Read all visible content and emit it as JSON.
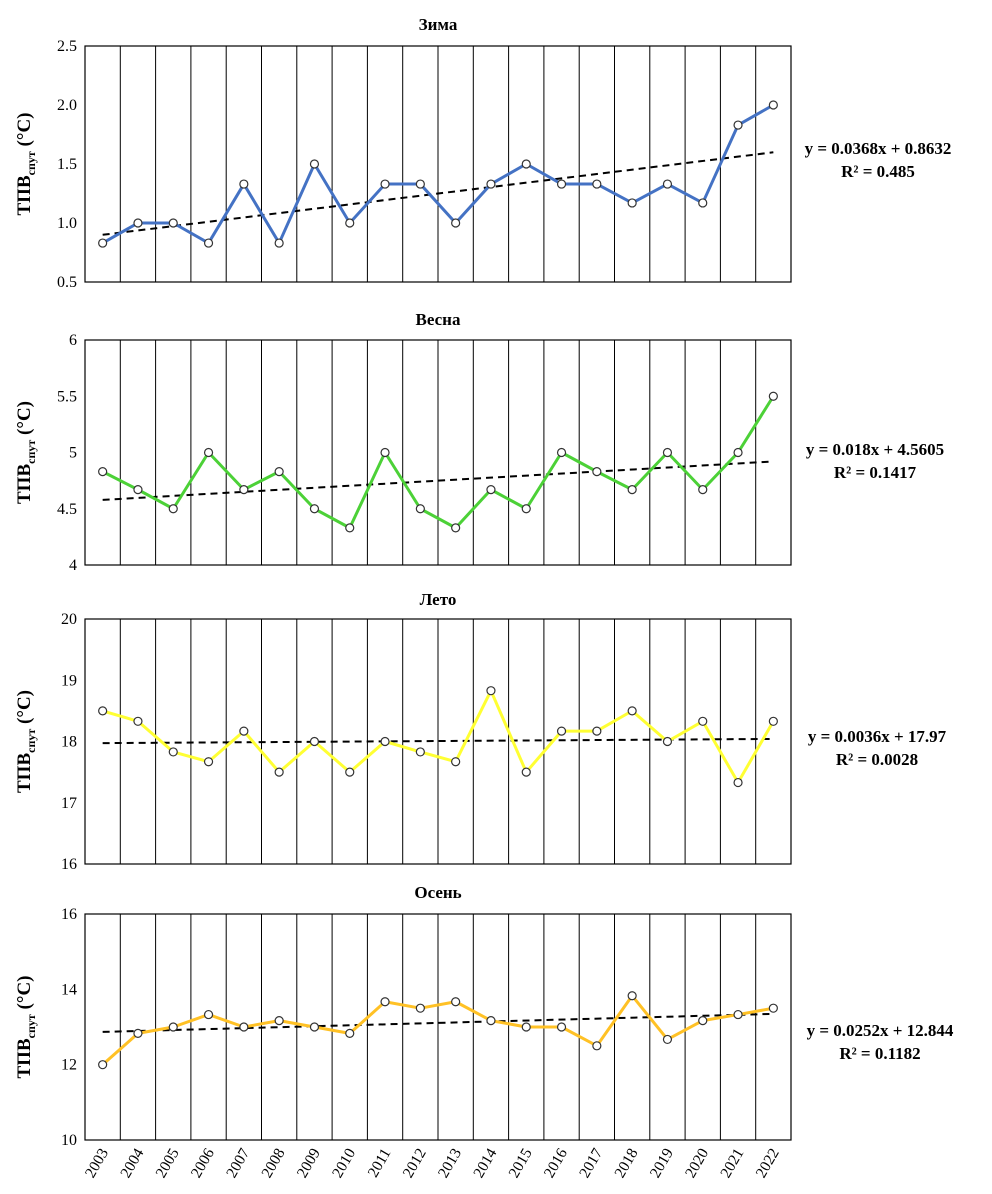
{
  "chart_data": [
    {
      "type": "line",
      "title": "Зима",
      "ylabel": {
        "main": "ТПВ",
        "sub": "спут",
        "unit": " (°C)"
      },
      "x": [
        2003,
        2004,
        2005,
        2006,
        2007,
        2008,
        2009,
        2010,
        2011,
        2012,
        2013,
        2014,
        2015,
        2016,
        2017,
        2018,
        2019,
        2020,
        2021,
        2022
      ],
      "values": [
        0.83,
        1.0,
        1.0,
        0.83,
        1.33,
        0.83,
        1.5,
        1.0,
        1.33,
        1.33,
        1.0,
        1.33,
        1.5,
        1.33,
        1.33,
        1.17,
        1.33,
        1.17,
        1.83,
        2.0
      ],
      "ylim": [
        0.5,
        2.5
      ],
      "yticks": [
        "0.5",
        "1.0",
        "1.5",
        "2.0",
        "2.5"
      ],
      "color": "#4472C4",
      "trend": {
        "slope": 0.0368,
        "intercept": 0.8632
      },
      "equation": "y = 0.0368x + 0.8632",
      "r2": "R² = 0.485"
    },
    {
      "type": "line",
      "title": "Весна",
      "ylabel": {
        "main": "ТПВ",
        "sub": "спут",
        "unit": " (°C)"
      },
      "x": [
        2003,
        2004,
        2005,
        2006,
        2007,
        2008,
        2009,
        2010,
        2011,
        2012,
        2013,
        2014,
        2015,
        2016,
        2017,
        2018,
        2019,
        2020,
        2021,
        2022
      ],
      "values": [
        4.83,
        4.67,
        4.5,
        5.0,
        4.67,
        4.83,
        4.5,
        4.33,
        5.0,
        4.5,
        4.33,
        4.67,
        4.5,
        5.0,
        4.83,
        4.67,
        5.0,
        4.67,
        5.0,
        5.5
      ],
      "ylim": [
        4,
        6
      ],
      "yticks": [
        "4",
        "4.5",
        "5",
        "5.5",
        "6"
      ],
      "color": "#4CD137",
      "trend": {
        "slope": 0.018,
        "intercept": 4.5605
      },
      "equation": "y = 0.018x + 4.5605",
      "r2": "R² = 0.1417"
    },
    {
      "type": "line",
      "title": "Лето",
      "ylabel": {
        "main": "ТПВ",
        "sub": "спут",
        "unit": " (°C)"
      },
      "x": [
        2003,
        2004,
        2005,
        2006,
        2007,
        2008,
        2009,
        2010,
        2011,
        2012,
        2013,
        2014,
        2015,
        2016,
        2017,
        2018,
        2019,
        2020,
        2021,
        2022
      ],
      "values": [
        18.5,
        18.33,
        17.83,
        17.67,
        18.17,
        17.5,
        18.0,
        17.5,
        18.0,
        17.83,
        17.67,
        18.83,
        17.5,
        18.17,
        18.17,
        18.5,
        18.0,
        18.33,
        17.33,
        18.33
      ],
      "ylim": [
        16,
        20
      ],
      "yticks": [
        "16",
        "17",
        "18",
        "19",
        "20"
      ],
      "color": "#FFFF33",
      "trend": {
        "slope": 0.0036,
        "intercept": 17.97
      },
      "equation": "y = 0.0036x + 17.97",
      "r2": "R² = 0.0028"
    },
    {
      "type": "line",
      "title": "Осень",
      "ylabel": {
        "main": "ТПВ",
        "sub": "спут",
        "unit": " (°C)"
      },
      "x": [
        2003,
        2004,
        2005,
        2006,
        2007,
        2008,
        2009,
        2010,
        2011,
        2012,
        2013,
        2014,
        2015,
        2016,
        2017,
        2018,
        2019,
        2020,
        2021,
        2022
      ],
      "values": [
        12.0,
        12.83,
        13.0,
        13.33,
        13.0,
        13.17,
        13.0,
        12.83,
        13.67,
        13.5,
        13.67,
        13.17,
        13.0,
        13.0,
        12.5,
        13.83,
        12.67,
        13.17,
        13.33,
        13.5
      ],
      "ylim": [
        10,
        16
      ],
      "yticks": [
        "10",
        "12",
        "14",
        "16"
      ],
      "color": "#FFC125",
      "trend": {
        "slope": 0.0252,
        "intercept": 12.844
      },
      "equation": "y = 0.0252x + 12.844",
      "r2": "R² = 0.1182"
    }
  ]
}
